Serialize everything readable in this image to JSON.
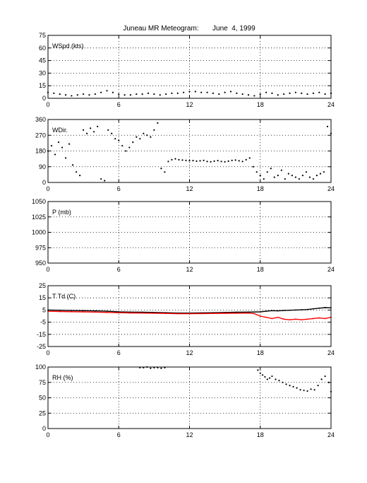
{
  "page_title": "Juneau MR Meteogram:       June  4, 1999",
  "chart_data": [
    {
      "type": "scatter",
      "label": "WSpd (kts)",
      "xlim": [
        0,
        24
      ],
      "ylim": [
        0,
        75
      ],
      "x_ticks": [
        0,
        6,
        12,
        18,
        24
      ],
      "y_ticks": [
        0,
        15,
        30,
        45,
        60,
        75
      ],
      "grid": true,
      "series": [
        {
          "color": "#000000",
          "x": [
            0,
            0.5,
            1,
            1.5,
            2,
            2.5,
            3,
            3.5,
            4,
            4.5,
            5,
            5.5,
            6,
            6.5,
            7,
            7.5,
            8,
            8.5,
            9,
            9.5,
            10,
            10.5,
            11,
            11.5,
            12,
            12.5,
            13,
            13.5,
            14,
            14.5,
            15,
            15.5,
            16,
            16.5,
            17,
            17.5,
            18,
            18.5,
            19,
            19.5,
            20,
            20.5,
            21,
            21.5,
            22,
            22.5,
            23,
            23.5,
            24
          ],
          "y": [
            7,
            6,
            5,
            4,
            3,
            4,
            5,
            4,
            5,
            7,
            9,
            7,
            5,
            4,
            4,
            5,
            5,
            6,
            5,
            4,
            5,
            6,
            6,
            7,
            8,
            8,
            7,
            7,
            6,
            5,
            7,
            8,
            6,
            5,
            4,
            3,
            5,
            7,
            6,
            4,
            5,
            6,
            7,
            6,
            5,
            6,
            7,
            5,
            6
          ]
        }
      ]
    },
    {
      "type": "scatter",
      "label": "WDir.",
      "xlim": [
        0,
        24
      ],
      "ylim": [
        0,
        360
      ],
      "x_ticks": [
        0,
        6,
        12,
        18,
        24
      ],
      "y_ticks": [
        0,
        90,
        180,
        270,
        360
      ],
      "grid": true,
      "series": [
        {
          "color": "#000000",
          "x": [
            0,
            0.3,
            0.6,
            0.9,
            1.2,
            1.5,
            1.8,
            2.1,
            2.4,
            2.7,
            3,
            3.3,
            3.6,
            3.9,
            4.2,
            4.5,
            4.8,
            5.1,
            5.4,
            5.7,
            6,
            6.3,
            6.6,
            6.9,
            7.2,
            7.5,
            7.8,
            8.1,
            8.4,
            8.7,
            9,
            9.3,
            9.6,
            9.9,
            10.2,
            10.5,
            10.8,
            11.1,
            11.4,
            11.7,
            12,
            12.3,
            12.6,
            12.9,
            13.2,
            13.5,
            13.8,
            14.1,
            14.4,
            14.7,
            15,
            15.3,
            15.6,
            15.9,
            16.2,
            16.5,
            16.8,
            17.1,
            17.4,
            17.7,
            18,
            18.3,
            18.6,
            18.9,
            19.2,
            19.5,
            19.8,
            20.1,
            20.4,
            20.7,
            21,
            21.3,
            21.6,
            21.9,
            22.2,
            22.5,
            22.8,
            23.1,
            23.4,
            23.7,
            24
          ],
          "y": [
            180,
            210,
            160,
            230,
            200,
            140,
            220,
            100,
            60,
            40,
            300,
            280,
            310,
            290,
            320,
            20,
            10,
            300,
            280,
            250,
            240,
            210,
            180,
            200,
            230,
            260,
            250,
            280,
            270,
            260,
            300,
            340,
            80,
            60,
            120,
            130,
            135,
            130,
            128,
            126,
            125,
            125,
            122,
            124,
            126,
            120,
            118,
            122,
            125,
            120,
            118,
            122,
            126,
            128,
            124,
            120,
            130,
            140,
            90,
            60,
            40,
            20,
            60,
            80,
            30,
            40,
            70,
            20,
            50,
            40,
            30,
            20,
            40,
            60,
            30,
            20,
            40,
            50,
            60,
            320,
            280
          ]
        }
      ]
    },
    {
      "type": "line",
      "label": "P (mb)",
      "xlim": [
        0,
        24
      ],
      "ylim": [
        950,
        1050
      ],
      "x_ticks": [
        0,
        6,
        12,
        18,
        24
      ],
      "y_ticks": [
        950,
        975,
        1000,
        1025,
        1050
      ],
      "grid": true,
      "series": []
    },
    {
      "type": "line",
      "label": "T Td (C)",
      "xlim": [
        0,
        24
      ],
      "ylim": [
        -25,
        25
      ],
      "x_ticks": [
        0,
        6,
        12,
        18,
        24
      ],
      "y_ticks": [
        -25,
        -15,
        -5,
        5,
        15,
        25
      ],
      "grid": true,
      "series": [
        {
          "color": "#000000",
          "x": [
            0,
            1,
            2,
            3,
            4,
            5,
            6,
            7,
            8,
            9,
            10,
            11,
            12,
            13,
            14,
            15,
            16,
            17,
            18,
            18.5,
            19,
            19.5,
            20,
            20.5,
            21,
            21.5,
            22,
            22.5,
            23,
            23.5,
            24
          ],
          "y": [
            5,
            4.8,
            4.6,
            4.5,
            4.3,
            4,
            3.5,
            3.3,
            3.2,
            3,
            2.8,
            2.5,
            2.5,
            2.6,
            2.8,
            3,
            3.2,
            3.3,
            3.5,
            4,
            4.5,
            4.3,
            4.6,
            4.8,
            5,
            5.2,
            5.4,
            6,
            6.5,
            7,
            6.8
          ]
        },
        {
          "color": "#ff0000",
          "x": [
            0,
            1,
            2,
            3,
            4,
            5,
            6,
            7,
            8,
            9,
            10,
            11,
            12,
            13,
            14,
            15,
            16,
            17,
            17.5,
            18,
            18.5,
            19,
            19.5,
            20,
            20.5,
            21,
            21.5,
            22,
            22.5,
            23,
            23.5,
            24
          ],
          "y": [
            4,
            3.8,
            3.6,
            3.5,
            3.3,
            3,
            2.8,
            2.6,
            2.5,
            2.4,
            2.2,
            2,
            2,
            2.1,
            2.2,
            2.3,
            2.4,
            2.5,
            2,
            0,
            -1,
            -2,
            -1,
            -2.5,
            -3,
            -2.5,
            -3,
            -2.5,
            -2,
            -1.5,
            -2,
            -1
          ]
        }
      ]
    },
    {
      "type": "scatter",
      "label": "RH (%)",
      "xlim": [
        0,
        24
      ],
      "ylim": [
        0,
        100
      ],
      "x_ticks": [
        0,
        6,
        12,
        18,
        24
      ],
      "y_ticks": [
        0,
        25,
        50,
        75,
        100
      ],
      "grid": true,
      "series": [
        {
          "color": "#000000",
          "x": [
            7.8,
            8.1,
            8.4,
            8.7,
            9,
            9.3,
            9.6,
            9.9,
            17.8,
            18,
            18.2,
            18.4,
            18.6,
            18.8,
            19,
            19.3,
            19.6,
            19.9,
            20.2,
            20.5,
            20.8,
            21.1,
            21.4,
            21.7,
            22,
            22.3,
            22.6,
            22.9,
            23.2,
            23.5,
            23.8,
            24
          ],
          "y": [
            99,
            99,
            100,
            98,
            99,
            99,
            98,
            99,
            95,
            90,
            87,
            84,
            80,
            82,
            85,
            80,
            78,
            75,
            72,
            70,
            68,
            66,
            63,
            62,
            61,
            64,
            63,
            70,
            80,
            85,
            75,
            60
          ]
        }
      ]
    }
  ]
}
